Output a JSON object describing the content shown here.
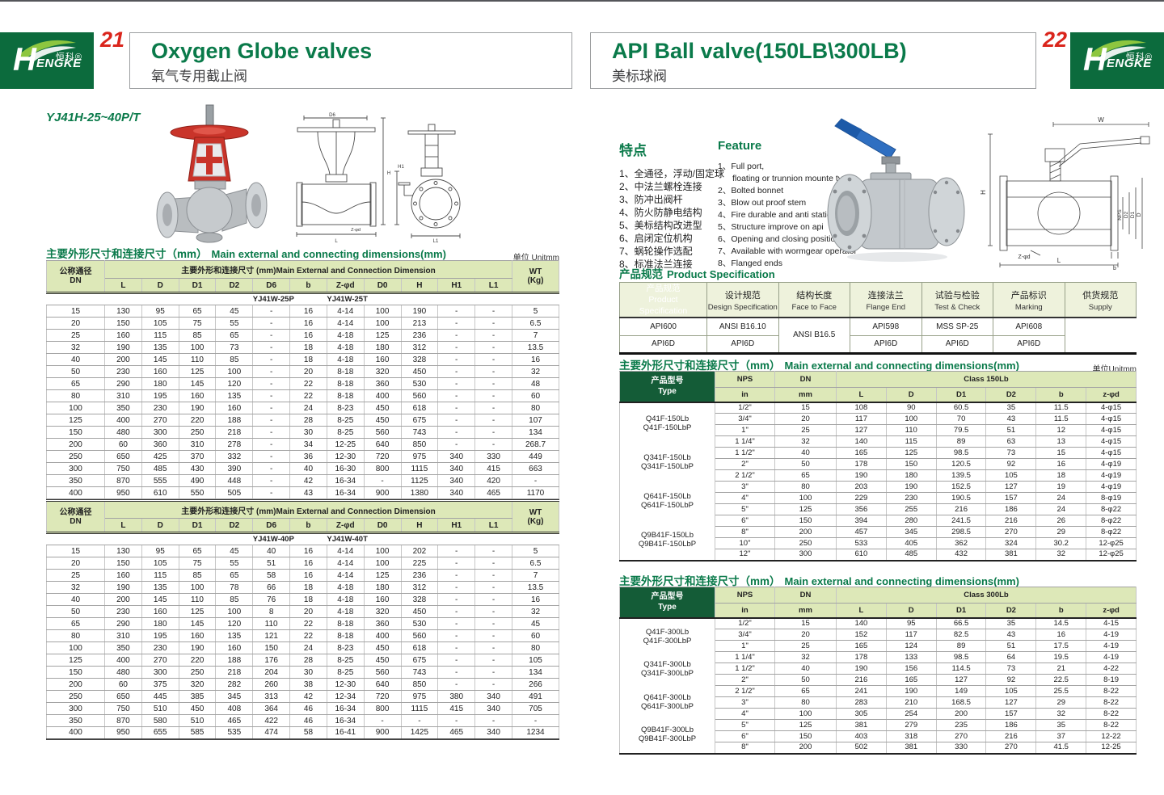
{
  "logo": {
    "en_h": "H",
    "en_rest": "ENGKE",
    "cn": "恒科®"
  },
  "left_page": {
    "page_number": "21",
    "title": "Oxygen Globe valves",
    "subtitle": "氧气专用截止阀",
    "model": "YJ41H-25~40P/T",
    "section_title_cn": "主要外形尺寸和连接尺寸（mm）",
    "section_title_en": "Main external and connecting dimensions(mm)",
    "unit_note": "单位 Unitmm",
    "table1": {
      "header_dn": "公称通径\nDN",
      "header_span": "主要外形和连接尺寸 (mm)Main External and Connection Dimension",
      "header_wt": "WT\n(Kg)",
      "columns": [
        "L",
        "D",
        "D1",
        "D2",
        "D6",
        "b",
        "Z-φd",
        "D0",
        "H",
        "H1",
        "L1"
      ],
      "models": [
        "YJ41W-25P",
        "YJ41W-25T"
      ],
      "rows": [
        [
          "15",
          "130",
          "95",
          "65",
          "45",
          "-",
          "16",
          "4-14",
          "100",
          "190",
          "-",
          "-",
          "5"
        ],
        [
          "20",
          "150",
          "105",
          "75",
          "55",
          "-",
          "16",
          "4-14",
          "100",
          "213",
          "-",
          "-",
          "6.5"
        ],
        [
          "25",
          "160",
          "115",
          "85",
          "65",
          "-",
          "16",
          "4-18",
          "125",
          "236",
          "-",
          "-",
          "7"
        ],
        [
          "32",
          "190",
          "135",
          "100",
          "73",
          "-",
          "18",
          "4-18",
          "180",
          "312",
          "-",
          "-",
          "13.5"
        ],
        [
          "40",
          "200",
          "145",
          "110",
          "85",
          "-",
          "18",
          "4-18",
          "160",
          "328",
          "-",
          "-",
          "16"
        ],
        [
          "50",
          "230",
          "160",
          "125",
          "100",
          "-",
          "20",
          "8-18",
          "320",
          "450",
          "-",
          "-",
          "32"
        ],
        [
          "65",
          "290",
          "180",
          "145",
          "120",
          "-",
          "22",
          "8-18",
          "360",
          "530",
          "-",
          "-",
          "48"
        ],
        [
          "80",
          "310",
          "195",
          "160",
          "135",
          "-",
          "22",
          "8-18",
          "400",
          "560",
          "-",
          "-",
          "60"
        ],
        [
          "100",
          "350",
          "230",
          "190",
          "160",
          "-",
          "24",
          "8-23",
          "450",
          "618",
          "-",
          "-",
          "80"
        ],
        [
          "125",
          "400",
          "270",
          "220",
          "188",
          "-",
          "28",
          "8-25",
          "450",
          "675",
          "-",
          "-",
          "107"
        ],
        [
          "150",
          "480",
          "300",
          "250",
          "218",
          "-",
          "30",
          "8-25",
          "560",
          "743",
          "-",
          "-",
          "134"
        ],
        [
          "200",
          "60",
          "360",
          "310",
          "278",
          "-",
          "34",
          "12-25",
          "640",
          "850",
          "-",
          "-",
          "268.7"
        ],
        [
          "250",
          "650",
          "425",
          "370",
          "332",
          "-",
          "36",
          "12-30",
          "720",
          "975",
          "340",
          "330",
          "449"
        ],
        [
          "300",
          "750",
          "485",
          "430",
          "390",
          "-",
          "40",
          "16-30",
          "800",
          "1115",
          "340",
          "415",
          "663"
        ],
        [
          "350",
          "870",
          "555",
          "490",
          "448",
          "-",
          "42",
          "16-34",
          "-",
          "1125",
          "340",
          "420",
          "-"
        ],
        [
          "400",
          "950",
          "610",
          "550",
          "505",
          "-",
          "43",
          "16-34",
          "900",
          "1380",
          "340",
          "465",
          "1170"
        ]
      ]
    },
    "table2": {
      "header_dn": "公称通径\nDN",
      "header_span": "主要外形和连接尺寸 (mm)Main External and Connection Dimension",
      "header_wt": "WT\n(Kg)",
      "columns": [
        "L",
        "D",
        "D1",
        "D2",
        "D6",
        "b",
        "Z-φd",
        "D0",
        "H",
        "H1",
        "L1"
      ],
      "models": [
        "YJ41W-40P",
        "YJ41W-40T"
      ],
      "rows": [
        [
          "15",
          "130",
          "95",
          "65",
          "45",
          "40",
          "16",
          "4-14",
          "100",
          "202",
          "-",
          "-",
          "5"
        ],
        [
          "20",
          "150",
          "105",
          "75",
          "55",
          "51",
          "16",
          "4-14",
          "100",
          "225",
          "-",
          "-",
          "6.5"
        ],
        [
          "25",
          "160",
          "115",
          "85",
          "65",
          "58",
          "16",
          "4-14",
          "125",
          "236",
          "-",
          "-",
          "7"
        ],
        [
          "32",
          "190",
          "135",
          "100",
          "78",
          "66",
          "18",
          "4-18",
          "180",
          "312",
          "-",
          "-",
          "13.5"
        ],
        [
          "40",
          "200",
          "145",
          "110",
          "85",
          "76",
          "18",
          "4-18",
          "160",
          "328",
          "-",
          "-",
          "16"
        ],
        [
          "50",
          "230",
          "160",
          "125",
          "100",
          "8",
          "20",
          "4-18",
          "320",
          "450",
          "-",
          "-",
          "32"
        ],
        [
          "65",
          "290",
          "180",
          "145",
          "120",
          "110",
          "22",
          "8-18",
          "360",
          "530",
          "-",
          "-",
          "45"
        ],
        [
          "80",
          "310",
          "195",
          "160",
          "135",
          "121",
          "22",
          "8-18",
          "400",
          "560",
          "-",
          "-",
          "60"
        ],
        [
          "100",
          "350",
          "230",
          "190",
          "160",
          "150",
          "24",
          "8-23",
          "450",
          "618",
          "-",
          "-",
          "80"
        ],
        [
          "125",
          "400",
          "270",
          "220",
          "188",
          "176",
          "28",
          "8-25",
          "450",
          "675",
          "-",
          "-",
          "105"
        ],
        [
          "150",
          "480",
          "300",
          "250",
          "218",
          "204",
          "30",
          "8-25",
          "560",
          "743",
          "-",
          "-",
          "134"
        ],
        [
          "200",
          "60",
          "375",
          "320",
          "282",
          "260",
          "38",
          "12-30",
          "640",
          "850",
          "-",
          "-",
          "266"
        ],
        [
          "250",
          "650",
          "445",
          "385",
          "345",
          "313",
          "42",
          "12-34",
          "720",
          "975",
          "380",
          "340",
          "491"
        ],
        [
          "300",
          "750",
          "510",
          "450",
          "408",
          "364",
          "46",
          "16-34",
          "800",
          "1115",
          "415",
          "340",
          "705"
        ],
        [
          "350",
          "870",
          "580",
          "510",
          "465",
          "422",
          "46",
          "16-34",
          "-",
          "-",
          "-",
          "-",
          "-"
        ],
        [
          "400",
          "950",
          "655",
          "585",
          "535",
          "474",
          "58",
          "16-41",
          "900",
          "1425",
          "465",
          "340",
          "1234"
        ]
      ]
    }
  },
  "right_page": {
    "page_number": "22",
    "title": "API Ball valve(150LB\\300LB)",
    "subtitle": "美标球阀",
    "features_cn": {
      "heading": "特点",
      "items": [
        "1、全通径，浮动/固定球",
        "2、中法兰螺栓连接",
        "3、防冲出阀杆",
        "4、防火防静电结构",
        "5、美标结构改进型",
        "6、启闭定位机构",
        "7、蜗轮操作选配",
        "8、标准法兰连接"
      ]
    },
    "features_en": {
      "heading": "Feature",
      "items": [
        "1、Full port,|floating or trunnion mounte type",
        "2、Bolted bonnet",
        "3、Blow out proof stem",
        "4、Fire durable and anti static safety",
        "5、Structure improve on api",
        "6、Opening and closing position",
        "7、Available with wormgear operator",
        "8、Flanged ends"
      ]
    },
    "spec": {
      "title_cn": "产品规范",
      "title_en": "Product Specification",
      "row_label": "产品规范\nProduct\nSpecification",
      "columns": [
        {
          "cn": "设计规范",
          "en": "Design Specification"
        },
        {
          "cn": "结构长度",
          "en": "Face to Face"
        },
        {
          "cn": "连接法兰",
          "en": "Flange End"
        },
        {
          "cn": "试验与检验",
          "en": "Test & Check"
        },
        {
          "cn": "产品标识",
          "en": "Marking"
        },
        {
          "cn": "供货规范",
          "en": "Supply"
        }
      ],
      "row1": [
        "API600",
        "ANSI B16.10",
        "ANSI B16.5",
        "API598",
        "MSS SP-25",
        "API608"
      ],
      "row2": [
        "API6D",
        "API6D",
        "API6D",
        "API6D",
        "API6D"
      ]
    },
    "dim_title_cn": "主要外形尺寸和连接尺寸（mm）",
    "dim_title_en": "Main external and connecting dimensions(mm)",
    "unit_note": "单位Unitmm",
    "table150": {
      "type_header": "产品型号\nType",
      "nps": "NPS",
      "dn": "DN",
      "in": "in",
      "mm": "mm",
      "class_label": "Class 150Lb",
      "cols": [
        "L",
        "D",
        "D1",
        "D2",
        "b",
        "z-φd"
      ],
      "types": [
        [
          "Q41F-150Lb",
          "Q41F-150LbP"
        ],
        [
          "Q341F-150Lb",
          "Q341F-150LbP"
        ],
        [
          "Q641F-150Lb",
          "Q641F-150LbP"
        ],
        [
          "Q9B41F-150Lb",
          "Q9B41F-150LbP"
        ]
      ],
      "rows": [
        [
          "1/2\"",
          "15",
          "108",
          "90",
          "60.5",
          "35",
          "11.5",
          "4-φ15"
        ],
        [
          "3/4\"",
          "20",
          "117",
          "100",
          "70",
          "43",
          "11.5",
          "4-φ15"
        ],
        [
          "1\"",
          "25",
          "127",
          "110",
          "79.5",
          "51",
          "12",
          "4-φ15"
        ],
        [
          "1 1/4\"",
          "32",
          "140",
          "115",
          "89",
          "63",
          "13",
          "4-φ15"
        ],
        [
          "1 1/2\"",
          "40",
          "165",
          "125",
          "98.5",
          "73",
          "15",
          "4-φ15"
        ],
        [
          "2\"",
          "50",
          "178",
          "150",
          "120.5",
          "92",
          "16",
          "4-φ19"
        ],
        [
          "2 1/2\"",
          "65",
          "190",
          "180",
          "139.5",
          "105",
          "18",
          "4-φ19"
        ],
        [
          "3\"",
          "80",
          "203",
          "190",
          "152.5",
          "127",
          "19",
          "4-φ19"
        ],
        [
          "4\"",
          "100",
          "229",
          "230",
          "190.5",
          "157",
          "24",
          "8-φ19"
        ],
        [
          "5\"",
          "125",
          "356",
          "255",
          "216",
          "186",
          "24",
          "8-φ22"
        ],
        [
          "6\"",
          "150",
          "394",
          "280",
          "241.5",
          "216",
          "26",
          "8-φ22"
        ],
        [
          "8\"",
          "200",
          "457",
          "345",
          "298.5",
          "270",
          "29",
          "8-φ22"
        ],
        [
          "10\"",
          "250",
          "533",
          "405",
          "362",
          "324",
          "30.2",
          "12-φ25"
        ],
        [
          "12\"",
          "300",
          "610",
          "485",
          "432",
          "381",
          "32",
          "12-φ25"
        ]
      ]
    },
    "table300": {
      "type_header": "产品型号\nType",
      "nps": "NPS",
      "dn": "DN",
      "in": "in",
      "mm": "mm",
      "class_label": "Class 300Lb",
      "cols": [
        "L",
        "D",
        "D1",
        "D2",
        "b",
        "z-φd"
      ],
      "types": [
        [
          "Q41F-300Lb",
          "Q41F-300LbP"
        ],
        [
          "Q341F-300Lb",
          "Q341F-300LbP"
        ],
        [
          "Q641F-300Lb",
          "Q641F-300LbP"
        ],
        [
          "Q9B41F-300Lb",
          "Q9B41F-300LbP"
        ]
      ],
      "rows": [
        [
          "1/2\"",
          "15",
          "140",
          "95",
          "66.5",
          "35",
          "14.5",
          "4-15"
        ],
        [
          "3/4\"",
          "20",
          "152",
          "117",
          "82.5",
          "43",
          "16",
          "4-19"
        ],
        [
          "1\"",
          "25",
          "165",
          "124",
          "89",
          "51",
          "17.5",
          "4-19"
        ],
        [
          "1 1/4\"",
          "32",
          "178",
          "133",
          "98.5",
          "64",
          "19.5",
          "4-19"
        ],
        [
          "1 1/2\"",
          "40",
          "190",
          "156",
          "114.5",
          "73",
          "21",
          "4-22"
        ],
        [
          "2\"",
          "50",
          "216",
          "165",
          "127",
          "92",
          "22.5",
          "8-19"
        ],
        [
          "2 1/2\"",
          "65",
          "241",
          "190",
          "149",
          "105",
          "25.5",
          "8-22"
        ],
        [
          "3\"",
          "80",
          "283",
          "210",
          "168.5",
          "127",
          "29",
          "8-22"
        ],
        [
          "4\"",
          "100",
          "305",
          "254",
          "200",
          "157",
          "32",
          "8-22"
        ],
        [
          "5\"",
          "125",
          "381",
          "279",
          "235",
          "186",
          "35",
          "8-22"
        ],
        [
          "6\"",
          "150",
          "403",
          "318",
          "270",
          "216",
          "37",
          "12-22"
        ],
        [
          "8\"",
          "200",
          "502",
          "381",
          "330",
          "270",
          "41.5",
          "12-25"
        ]
      ]
    }
  },
  "drawings": {
    "globe_section": {
      "d6": "D6",
      "h": "H",
      "l": "L",
      "zd": "Z-φd"
    },
    "globe_front": {
      "h1": "H1",
      "l1": "L1"
    },
    "ball": {
      "w": "W",
      "h": "H",
      "nps": "NPS",
      "d2": "D2",
      "d1": "D1",
      "d": "D",
      "zd": "Z-φd",
      "b": "b",
      "l": "L"
    }
  }
}
